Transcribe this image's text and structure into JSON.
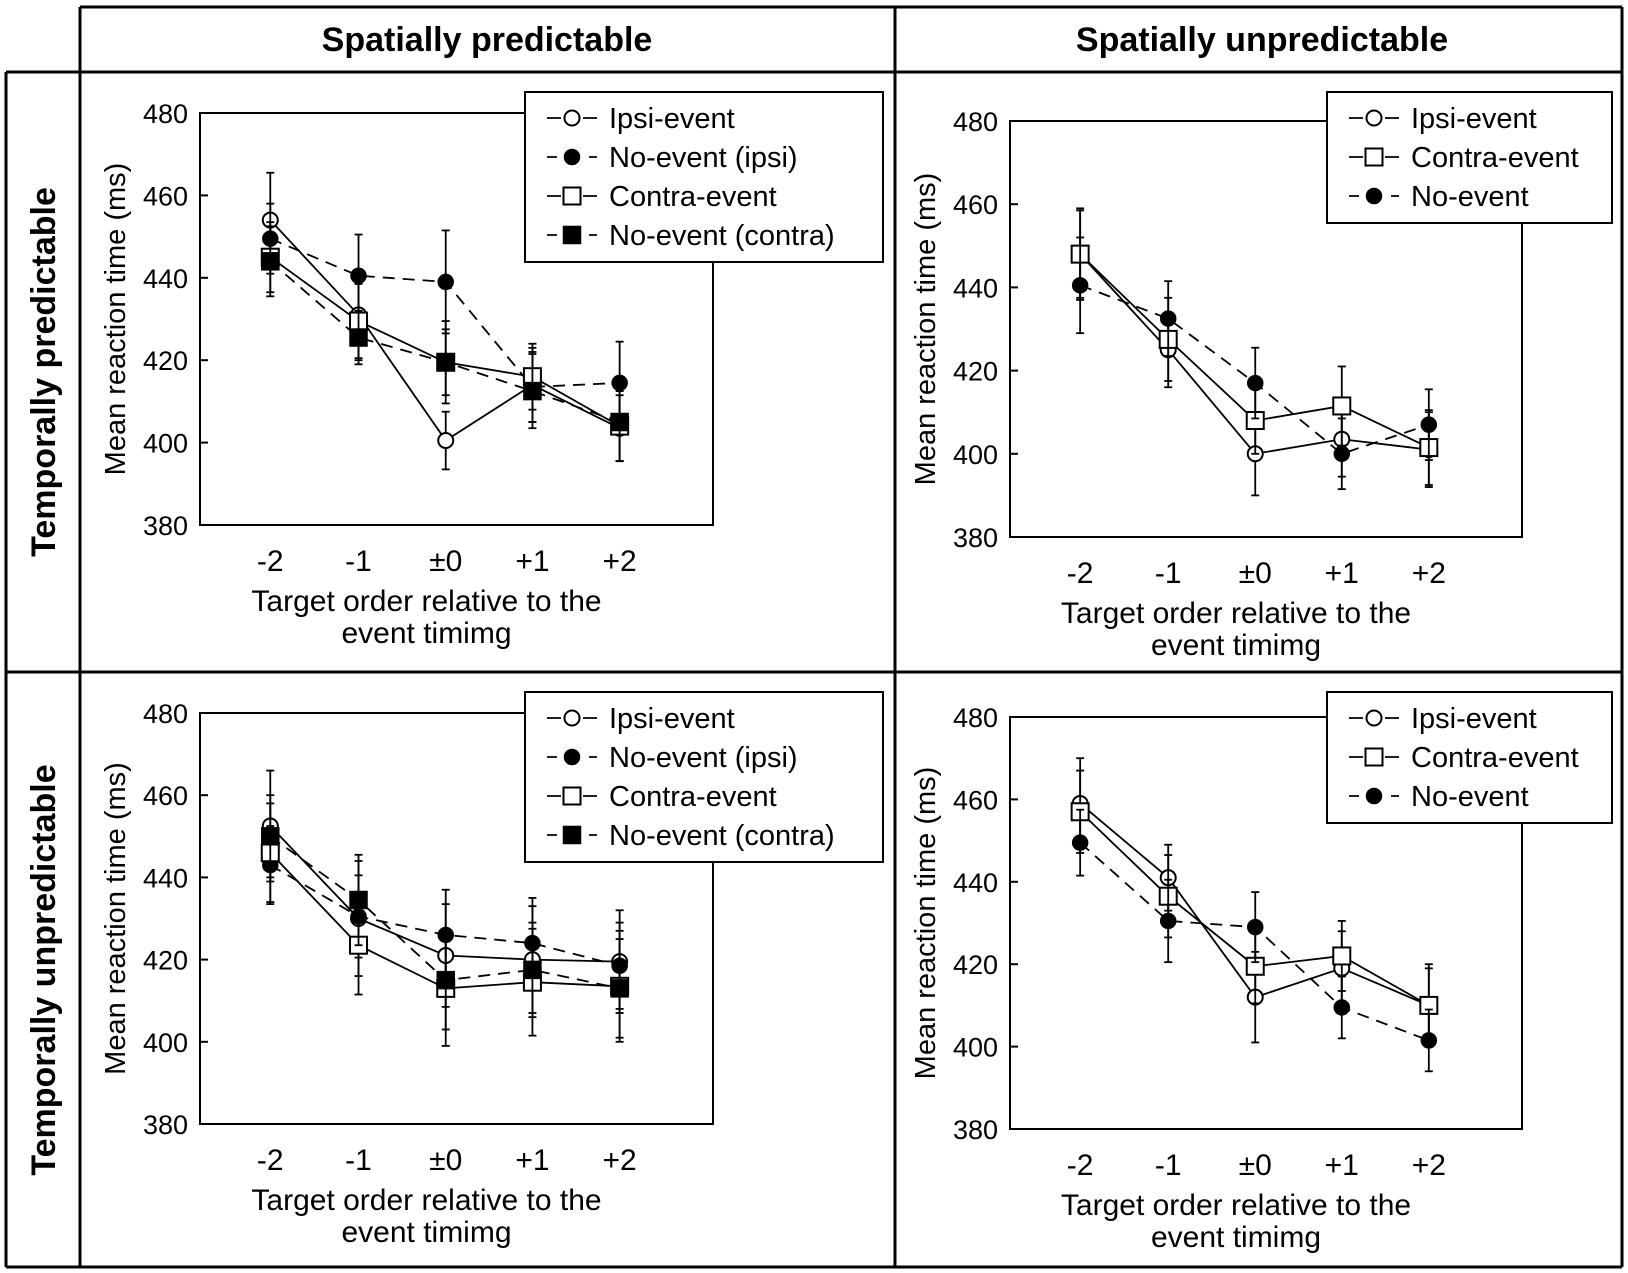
{
  "col_headers": [
    "Spatially predictable",
    "Spatially unpredictable"
  ],
  "row_headers": [
    "Temporally predictable",
    "Temporally unpredictable"
  ],
  "common": {
    "categories": [
      "-2",
      "-1",
      "±0",
      "+1",
      "+2"
    ],
    "xlabel_line1": "Target order relative to the",
    "xlabel_line2": "event timimg",
    "ylabel": "Mean reaction time (ms)",
    "yticks": [
      "380",
      "400",
      "420",
      "440",
      "460",
      "480"
    ],
    "ylim": [
      380,
      480
    ]
  },
  "chart_data": [
    {
      "type": "line",
      "title": "Temporally predictable / Spatially predictable",
      "categories": [
        "-2",
        "-1",
        "±0",
        "+1",
        "+2"
      ],
      "xlabel": "Target order relative to the event timimg",
      "ylabel": "Mean reaction time (ms)",
      "ylim": [
        380,
        480
      ],
      "legend_position": "top-right",
      "series": [
        {
          "name": "Ipsi-event",
          "marker": "open-circle",
          "dash": "solid",
          "values": [
            454,
            431,
            400.5,
            414,
            403.5
          ],
          "err": [
            11.5,
            11,
            7,
            9,
            8
          ]
        },
        {
          "name": "No-event (ipsi)",
          "marker": "filled-circle",
          "dash": "dashed",
          "values": [
            449.5,
            440.5,
            439,
            413.5,
            414.5
          ],
          "err": [
            8.5,
            10,
            12.5,
            8.5,
            10
          ]
        },
        {
          "name": "Contra-event",
          "marker": "open-square",
          "dash": "solid",
          "values": [
            445,
            429.5,
            419.5,
            416,
            404
          ],
          "err": [
            8.5,
            9,
            10,
            8,
            8.5
          ]
        },
        {
          "name": "No-event (contra)",
          "marker": "filled-square",
          "dash": "dashed",
          "values": [
            444,
            425.5,
            419.5,
            412.5,
            405
          ],
          "err": [
            8.5,
            6.5,
            8,
            9,
            9.5
          ]
        }
      ]
    },
    {
      "type": "line",
      "title": "Temporally predictable / Spatially unpredictable",
      "categories": [
        "-2",
        "-1",
        "±0",
        "+1",
        "+2"
      ],
      "xlabel": "Target order relative to the event timimg",
      "ylabel": "Mean reaction time (ms)",
      "ylim": [
        380,
        480
      ],
      "legend_position": "top-right",
      "series": [
        {
          "name": "Ipsi-event",
          "marker": "open-circle",
          "dash": "solid",
          "values": [
            448,
            425,
            400,
            403.5,
            401
          ],
          "err": [
            11,
            9,
            10,
            9,
            9
          ]
        },
        {
          "name": "Contra-event",
          "marker": "open-square",
          "dash": "solid",
          "values": [
            448,
            427.5,
            408,
            411.5,
            401.5
          ],
          "err": [
            10.5,
            10,
            8,
            9.5,
            9
          ]
        },
        {
          "name": "No-event",
          "marker": "filled-circle",
          "dash": "dashed",
          "values": [
            440.5,
            432.5,
            417,
            400,
            407
          ],
          "err": [
            11.5,
            9,
            8.5,
            8.5,
            8.5
          ]
        }
      ]
    },
    {
      "type": "line",
      "title": "Temporally unpredictable / Spatially predictable",
      "categories": [
        "-2",
        "-1",
        "±0",
        "+1",
        "+2"
      ],
      "xlabel": "Target order relative to the event timimg",
      "ylabel": "Mean reaction time (ms)",
      "ylim": [
        380,
        480
      ],
      "legend_position": "top-right",
      "series": [
        {
          "name": "Ipsi-event",
          "marker": "open-circle",
          "dash": "solid",
          "values": [
            452.5,
            430,
            421,
            420,
            419.5
          ],
          "err": [
            13.5,
            14,
            12.5,
            13,
            12.5
          ]
        },
        {
          "name": "No-event (ipsi)",
          "marker": "filled-circle",
          "dash": "dashed",
          "values": [
            443,
            430.5,
            426,
            424,
            418.5
          ],
          "err": [
            9.5,
            10,
            11,
            11,
            10.5
          ]
        },
        {
          "name": "Contra-event",
          "marker": "open-square",
          "dash": "solid",
          "values": [
            446,
            423.5,
            413,
            414.5,
            413.5
          ],
          "err": [
            12,
            12,
            14,
            13,
            13.5
          ]
        },
        {
          "name": "No-event (contra)",
          "marker": "filled-square",
          "dash": "dashed",
          "values": [
            450,
            434.5,
            415,
            417.5,
            413
          ],
          "err": [
            10,
            11,
            12,
            11.5,
            12
          ]
        }
      ]
    },
    {
      "type": "line",
      "title": "Temporally unpredictable / Spatially unpredictable",
      "categories": [
        "-2",
        "-1",
        "±0",
        "+1",
        "+2"
      ],
      "xlabel": "Target order relative to the event timimg",
      "ylabel": "Mean reaction time (ms)",
      "ylim": [
        380,
        480
      ],
      "legend_position": "top-right",
      "series": [
        {
          "name": "Ipsi-event",
          "marker": "open-circle",
          "dash": "solid",
          "values": [
            459,
            441,
            412,
            419,
            410
          ],
          "err": [
            11,
            8,
            11,
            9,
            9
          ]
        },
        {
          "name": "Contra-event",
          "marker": "open-square",
          "dash": "solid",
          "values": [
            457,
            436.5,
            419.5,
            422,
            410
          ],
          "err": [
            10,
            10,
            9,
            8.5,
            10
          ]
        },
        {
          "name": "No-event",
          "marker": "filled-circle",
          "dash": "dashed",
          "values": [
            449.5,
            430.5,
            429,
            409.5,
            401.5
          ],
          "err": [
            8,
            10,
            8.5,
            7.5,
            7.5
          ]
        }
      ]
    }
  ]
}
